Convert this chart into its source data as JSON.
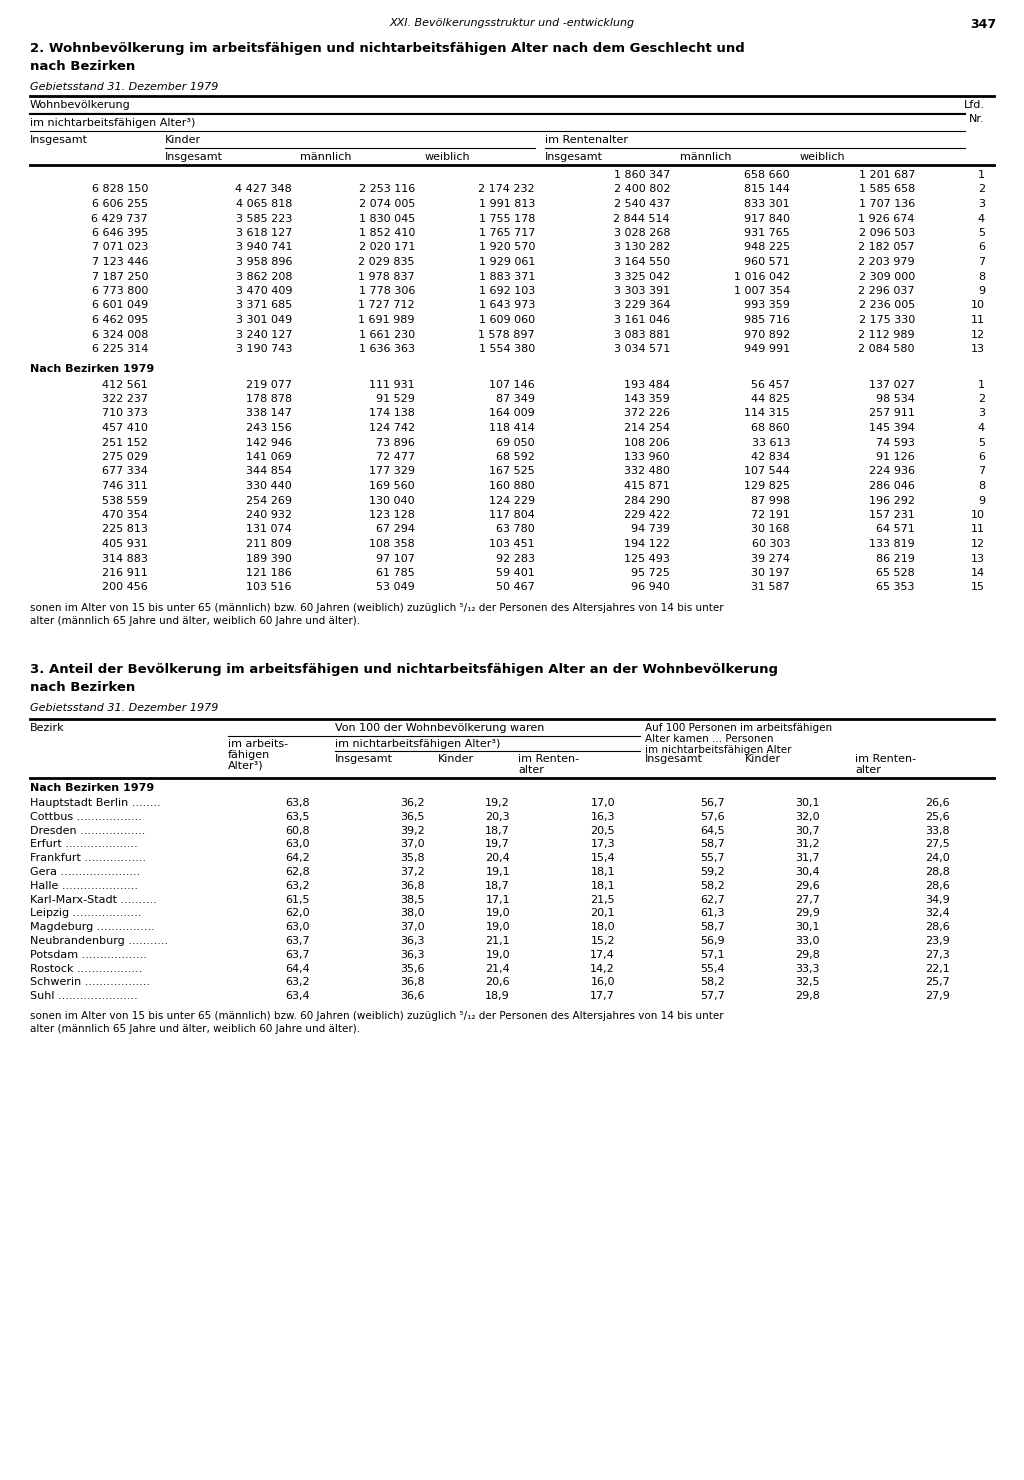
{
  "page_header": "XXI. Bevölkerungsstruktur und -entwicklung",
  "page_number": "347",
  "section2_title_line1": "2. Wohnbevölkerung im arbeitsfähigen und nichtarbeitsfähigen Alter nach dem Geschlecht und",
  "section2_title_line2": "nach Bezirken",
  "gebietsstand": "Gebietsstand 31. Dezember 1979",
  "data_rows_table1": [
    [
      "",
      "",
      "",
      "",
      "1 860 347",
      "658 660",
      "1 201 687",
      "1"
    ],
    [
      "6 828 150",
      "4 427 348",
      "2 253 116",
      "2 174 232",
      "2 400 802",
      "815 144",
      "1 585 658",
      "2"
    ],
    [
      "6 606 255",
      "4 065 818",
      "2 074 005",
      "1 991 813",
      "2 540 437",
      "833 301",
      "1 707 136",
      "3"
    ],
    [
      "6 429 737",
      "3 585 223",
      "1 830 045",
      "1 755 178",
      "2 844 514",
      "917 840",
      "1 926 674",
      "4"
    ],
    [
      "6 646 395",
      "3 618 127",
      "1 852 410",
      "1 765 717",
      "3 028 268",
      "931 765",
      "2 096 503",
      "5"
    ],
    [
      "7 071 023",
      "3 940 741",
      "2 020 171",
      "1 920 570",
      "3 130 282",
      "948 225",
      "2 182 057",
      "6"
    ],
    [
      "7 123 446",
      "3 958 896",
      "2 029 835",
      "1 929 061",
      "3 164 550",
      "960 571",
      "2 203 979",
      "7"
    ],
    [
      "7 187 250",
      "3 862 208",
      "1 978 837",
      "1 883 371",
      "3 325 042",
      "1 016 042",
      "2 309 000",
      "8"
    ],
    [
      "6 773 800",
      "3 470 409",
      "1 778 306",
      "1 692 103",
      "3 303 391",
      "1 007 354",
      "2 296 037",
      "9"
    ],
    [
      "6 601 049",
      "3 371 685",
      "1 727 712",
      "1 643 973",
      "3 229 364",
      "993 359",
      "2 236 005",
      "10"
    ],
    [
      "6 462 095",
      "3 301 049",
      "1 691 989",
      "1 609 060",
      "3 161 046",
      "985 716",
      "2 175 330",
      "11"
    ],
    [
      "6 324 008",
      "3 240 127",
      "1 661 230",
      "1 578 897",
      "3 083 881",
      "970 892",
      "2 112 989",
      "12"
    ],
    [
      "6 225 314",
      "3 190 743",
      "1 636 363",
      "1 554 380",
      "3 034 571",
      "949 991",
      "2 084 580",
      "13"
    ]
  ],
  "data_rows_bezirken": [
    [
      "412 561",
      "219 077",
      "111 931",
      "107 146",
      "193 484",
      "56 457",
      "137 027",
      "1"
    ],
    [
      "322 237",
      "178 878",
      "91 529",
      "87 349",
      "143 359",
      "44 825",
      "98 534",
      "2"
    ],
    [
      "710 373",
      "338 147",
      "174 138",
      "164 009",
      "372 226",
      "114 315",
      "257 911",
      "3"
    ],
    [
      "457 410",
      "243 156",
      "124 742",
      "118 414",
      "214 254",
      "68 860",
      "145 394",
      "4"
    ],
    [
      "251 152",
      "142 946",
      "73 896",
      "69 050",
      "108 206",
      "33 613",
      "74 593",
      "5"
    ],
    [
      "275 029",
      "141 069",
      "72 477",
      "68 592",
      "133 960",
      "42 834",
      "91 126",
      "6"
    ],
    [
      "677 334",
      "344 854",
      "177 329",
      "167 525",
      "332 480",
      "107 544",
      "224 936",
      "7"
    ],
    [
      "746 311",
      "330 440",
      "169 560",
      "160 880",
      "415 871",
      "129 825",
      "286 046",
      "8"
    ],
    [
      "538 559",
      "254 269",
      "130 040",
      "124 229",
      "284 290",
      "87 998",
      "196 292",
      "9"
    ],
    [
      "470 354",
      "240 932",
      "123 128",
      "117 804",
      "229 422",
      "72 191",
      "157 231",
      "10"
    ],
    [
      "225 813",
      "131 074",
      "67 294",
      "63 780",
      "94 739",
      "30 168",
      "64 571",
      "11"
    ],
    [
      "405 931",
      "211 809",
      "108 358",
      "103 451",
      "194 122",
      "60 303",
      "133 819",
      "12"
    ],
    [
      "314 883",
      "189 390",
      "97 107",
      "92 283",
      "125 493",
      "39 274",
      "86 219",
      "13"
    ],
    [
      "216 911",
      "121 186",
      "61 785",
      "59 401",
      "95 725",
      "30 197",
      "65 528",
      "14"
    ],
    [
      "200 456",
      "103 516",
      "53 049",
      "50 467",
      "96 940",
      "31 587",
      "65 353",
      "15"
    ]
  ],
  "footnote1": "sonen im Alter von 15 bis unter 65 (männlich) bzw. 60 Jahren (weiblich) zuzüglich ⁵/₁₂ der Personen des Altersjahres von 14 bis unter",
  "footnote2": "alter (männlich 65 Jahre und älter, weiblich 60 Jahre und älter).",
  "section3_title_line1": "3. Anteil der Bevölkerung im arbeitsfähigen und nichtarbeitsfähigen Alter an der Wohnbevölkerung",
  "section3_title_line2": "nach Bezirken",
  "gebietsstand3": "Gebietsstand 31. Dezember 1979",
  "table3_data": [
    [
      "Hauptstadt Berlin ........",
      "63,8",
      "36,2",
      "19,2",
      "17,0",
      "56,7",
      "30,1",
      "26,6"
    ],
    [
      "Cottbus ..................",
      "63,5",
      "36,5",
      "20,3",
      "16,3",
      "57,6",
      "32,0",
      "25,6"
    ],
    [
      "Dresden ..................",
      "60,8",
      "39,2",
      "18,7",
      "20,5",
      "64,5",
      "30,7",
      "33,8"
    ],
    [
      "Erfurt ....................",
      "63,0",
      "37,0",
      "19,7",
      "17,3",
      "58,7",
      "31,2",
      "27,5"
    ],
    [
      "Frankfurt .................",
      "64,2",
      "35,8",
      "20,4",
      "15,4",
      "55,7",
      "31,7",
      "24,0"
    ],
    [
      "Gera ......................",
      "62,8",
      "37,2",
      "19,1",
      "18,1",
      "59,2",
      "30,4",
      "28,8"
    ],
    [
      "Halle .....................",
      "63,2",
      "36,8",
      "18,7",
      "18,1",
      "58,2",
      "29,6",
      "28,6"
    ],
    [
      "Karl-Marx-Stadt ..........",
      "61,5",
      "38,5",
      "17,1",
      "21,5",
      "62,7",
      "27,7",
      "34,9"
    ],
    [
      "Leipzig ...................",
      "62,0",
      "38,0",
      "19,0",
      "20,1",
      "61,3",
      "29,9",
      "32,4"
    ],
    [
      "Magdeburg ................",
      "63,0",
      "37,0",
      "19,0",
      "18,0",
      "58,7",
      "30,1",
      "28,6"
    ],
    [
      "Neubrandenburg ...........",
      "63,7",
      "36,3",
      "21,1",
      "15,2",
      "56,9",
      "33,0",
      "23,9"
    ],
    [
      "Potsdam ..................",
      "63,7",
      "36,3",
      "19,0",
      "17,4",
      "57,1",
      "29,8",
      "27,3"
    ],
    [
      "Rostock ..................",
      "64,4",
      "35,6",
      "21,4",
      "14,2",
      "55,4",
      "33,3",
      "22,1"
    ],
    [
      "Schwerin ..................",
      "63,2",
      "36,8",
      "20,6",
      "16,0",
      "58,2",
      "32,5",
      "25,7"
    ],
    [
      "Suhl ......................",
      "63,4",
      "36,6",
      "18,9",
      "17,7",
      "57,7",
      "29,8",
      "27,9"
    ]
  ],
  "footnote3a": "sonen im Alter von 15 bis unter 65 (männlich) bzw. 60 Jahren (weiblich) zuzüglich ⁵/₁₂ der Personen des Altersjahres von 14 bis unter",
  "footnote3b": "alter (männlich 65 Jahre und älter, weiblich 60 Jahre und älter)."
}
